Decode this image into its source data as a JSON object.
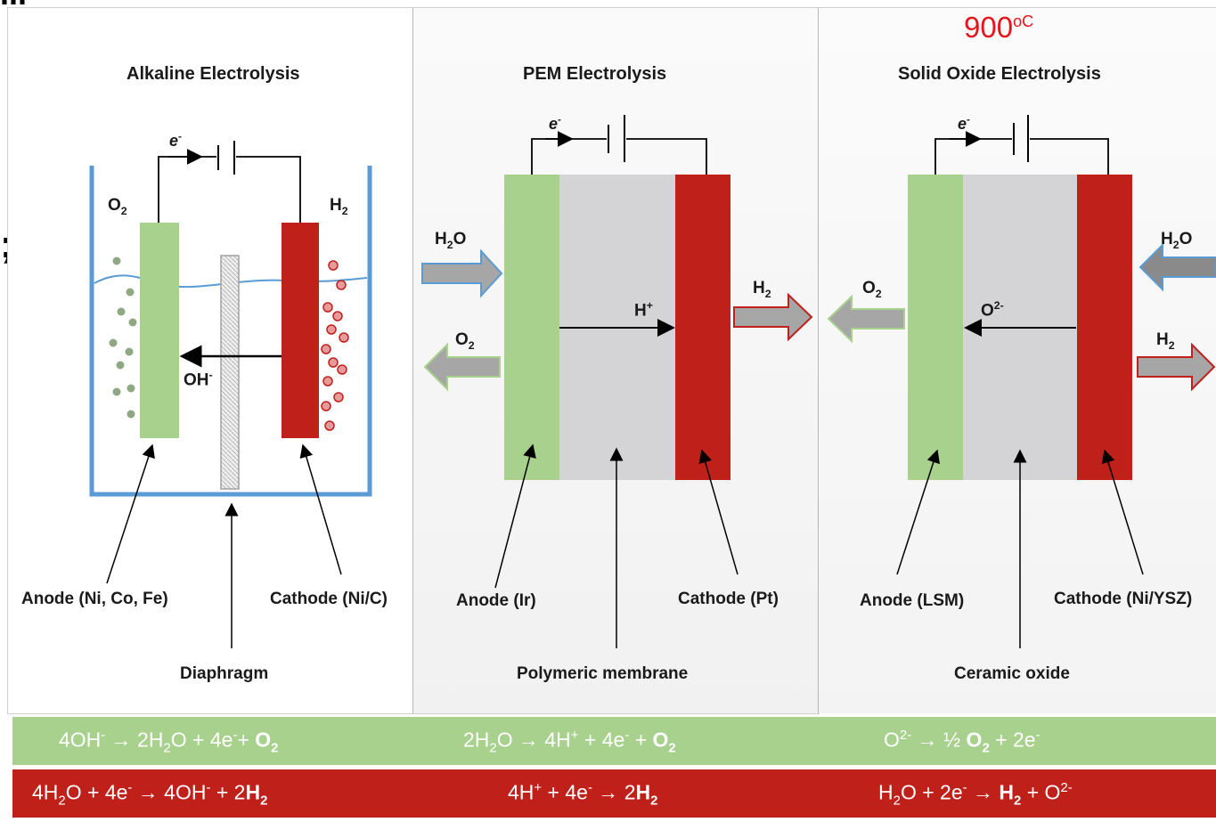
{
  "header": {
    "temperature": "900",
    "temperature_unit": "oC",
    "edge_punctuation": ";",
    "edge_fragment": "..."
  },
  "alkaline": {
    "title": "Alkaline Electrolysis",
    "electron": "e",
    "electron_sup": "-",
    "o2": "O",
    "o2_sub": "2",
    "h2": "H",
    "h2_sub": "2",
    "ion": "OH",
    "ion_sup": "-",
    "anode": "Anode (Ni, Co, Fe)",
    "cathode": "Cathode (Ni/C)",
    "separator": "Diaphragm"
  },
  "pem": {
    "title": "PEM Electrolysis",
    "electron": "e",
    "electron_sup": "-",
    "h2o_in": "H",
    "h2o_in_sub": "2",
    "h2o_in_tail": "O",
    "o2_out": "O",
    "o2_out_sub": "2",
    "h2_out": "H",
    "h2_out_sub": "2",
    "ion": "H",
    "ion_sup": "+",
    "anode": "Anode (Ir)",
    "cathode": "Cathode (Pt)",
    "separator": "Polymeric membrane"
  },
  "soec": {
    "title": "Solid Oxide Electrolysis",
    "electron": "e",
    "electron_sup": "-",
    "h2o_in": "H",
    "h2o_in_sub": "2",
    "h2o_in_tail": "O",
    "o2_out": "O",
    "o2_out_sub": "2",
    "h2_out": "H",
    "h2_out_sub": "2",
    "ion": "O",
    "ion_sup": "2-",
    "anode": "Anode (LSM)",
    "cathode": "Cathode (Ni/YSZ)",
    "separator": "Ceramic oxide"
  },
  "equations": {
    "anode": [
      {
        "parts": [
          "4OH",
          "-",
          " → 2H",
          "2",
          "O + 4e",
          "-",
          "+ ",
          "O",
          "2"
        ]
      },
      {
        "parts": [
          "2H",
          "2",
          "O → 4H",
          "+",
          " + 4e",
          "-",
          " + ",
          "O",
          "2"
        ]
      },
      {
        "parts": [
          "O",
          "2-",
          " → ½ ",
          "O",
          "2",
          " + 2e",
          "-"
        ]
      }
    ],
    "cathode": [
      {
        "parts": [
          "4H",
          "2",
          "O + 4e",
          "-",
          " → 4OH",
          "-",
          " + 2",
          "H",
          "2"
        ]
      },
      {
        "parts": [
          "4H",
          "+",
          " + 4e",
          "-",
          " → 2",
          "H",
          "2"
        ]
      },
      {
        "parts": [
          "H",
          "2",
          "O + 2e",
          "-",
          " → ",
          "H",
          "2",
          " + O",
          "2-"
        ]
      }
    ]
  },
  "colors": {
    "anode": "#a9d18e",
    "cathode": "#c0201a",
    "membrane": "#d4d3d6",
    "tank": "#5b9bd5",
    "temperature": "#e3161b"
  }
}
